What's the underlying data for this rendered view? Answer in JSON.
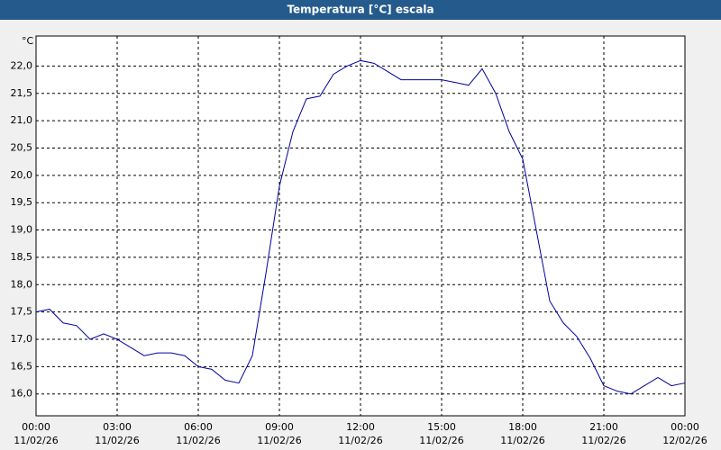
{
  "chart_data": {
    "type": "line",
    "title": "Temperatura [°C] escala",
    "y_unit": "°C",
    "x": [
      0,
      0.5,
      1,
      1.5,
      2,
      2.5,
      3,
      3.5,
      4,
      4.5,
      5,
      5.5,
      6,
      6.5,
      7,
      7.5,
      8,
      8.5,
      9,
      9.5,
      10,
      10.5,
      11,
      11.5,
      12,
      12.5,
      13,
      13.5,
      14,
      14.5,
      15,
      15.5,
      16,
      16.5,
      17,
      17.5,
      18,
      18.5,
      19,
      19.5,
      20,
      20.5,
      21,
      21.5,
      22,
      22.5,
      23,
      23.5,
      24
    ],
    "series": [
      {
        "name": "Temperatura",
        "color": "#0000a0",
        "values": [
          17.5,
          17.55,
          17.3,
          17.25,
          17.0,
          17.1,
          17.0,
          16.85,
          16.7,
          16.75,
          16.75,
          16.7,
          16.5,
          16.45,
          16.25,
          16.2,
          16.7,
          18.2,
          19.8,
          20.8,
          21.4,
          21.45,
          21.85,
          22.0,
          22.1,
          22.05,
          21.9,
          21.75,
          21.75,
          21.75,
          21.75,
          21.7,
          21.65,
          21.95,
          21.5,
          20.8,
          20.3,
          19.0,
          17.7,
          17.3,
          17.05,
          16.65,
          16.15,
          16.05,
          16.0,
          16.15,
          16.3,
          16.15,
          16.2
        ]
      }
    ],
    "xlim": [
      0,
      24
    ],
    "ylim": [
      15.6,
      22.55
    ],
    "xticks": [
      {
        "value": 0,
        "label": "00:00",
        "date": "11/02/26"
      },
      {
        "value": 3,
        "label": "03:00",
        "date": "11/02/26"
      },
      {
        "value": 6,
        "label": "06:00",
        "date": "11/02/26"
      },
      {
        "value": 9,
        "label": "09:00",
        "date": "11/02/26"
      },
      {
        "value": 12,
        "label": "12:00",
        "date": "11/02/26"
      },
      {
        "value": 15,
        "label": "15:00",
        "date": "11/02/26"
      },
      {
        "value": 18,
        "label": "18:00",
        "date": "11/02/26"
      },
      {
        "value": 21,
        "label": "21:00",
        "date": "11/02/26"
      },
      {
        "value": 24,
        "label": "00:00",
        "date": "12/02/26"
      }
    ],
    "yticks": [
      {
        "value": 16,
        "label": "16,0"
      },
      {
        "value": 16.5,
        "label": "16,5"
      },
      {
        "value": 17,
        "label": "17,0"
      },
      {
        "value": 17.5,
        "label": "17,5"
      },
      {
        "value": 18,
        "label": "18,0"
      },
      {
        "value": 18.5,
        "label": "18,5"
      },
      {
        "value": 19,
        "label": "19,0"
      },
      {
        "value": 19.5,
        "label": "19,5"
      },
      {
        "value": 20,
        "label": "20,0"
      },
      {
        "value": 20.5,
        "label": "20,5"
      },
      {
        "value": 21,
        "label": "21,0"
      },
      {
        "value": 21.5,
        "label": "21,5"
      },
      {
        "value": 22,
        "label": "22,0"
      }
    ],
    "grid": true
  }
}
